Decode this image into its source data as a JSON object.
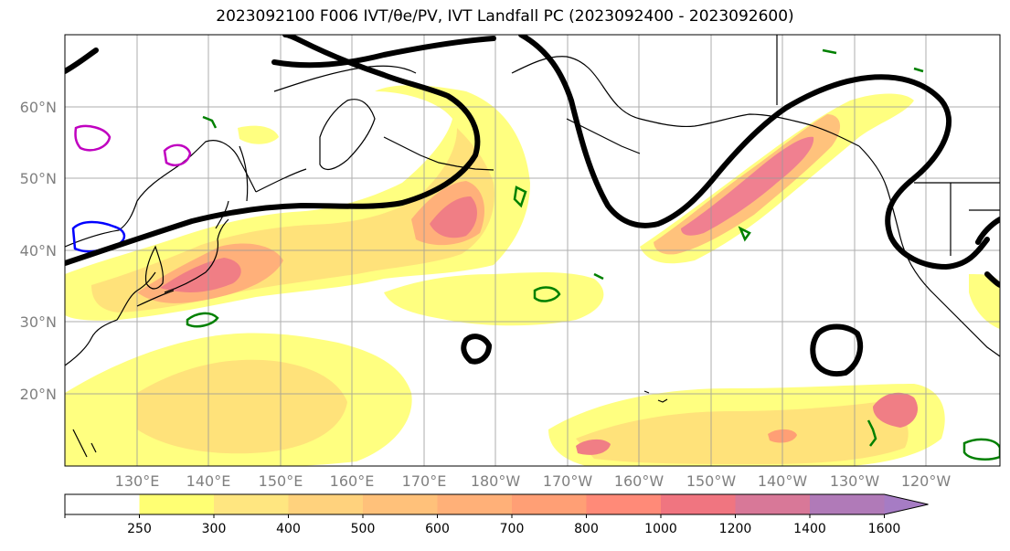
{
  "title": "2023092100 F006 IVT/θe/PV, IVT Landfall PC (2023092400 - 2023092600)",
  "map": {
    "lat_labels": [
      "60°N",
      "50°N",
      "40°N",
      "30°N",
      "20°N"
    ],
    "lon_labels": [
      "130°E",
      "140°E",
      "150°E",
      "160°E",
      "170°E",
      "180°W",
      "170°W",
      "160°W",
      "150°W",
      "140°W",
      "130°W",
      "120°W"
    ]
  },
  "colorbar": {
    "levels": [
      "250",
      "300",
      "400",
      "500",
      "600",
      "700",
      "800",
      "1000",
      "1200",
      "1400",
      "1600"
    ],
    "colors": [
      "#ffffff",
      "#ffff73",
      "#ffe680",
      "#ffd27d",
      "#ffc17a",
      "#ffb078",
      "#ff9f75",
      "#ff8a78",
      "#f07580",
      "#d87898",
      "#b07ab8",
      "#a67cc4"
    ]
  },
  "legend_colors": {
    "ocean": "#ffffff",
    "coast": "#000000",
    "pv_contour": "#000000",
    "theta_green": "#008000",
    "theta_blue": "#0000ff",
    "theta_magenta": "#c000c0"
  }
}
